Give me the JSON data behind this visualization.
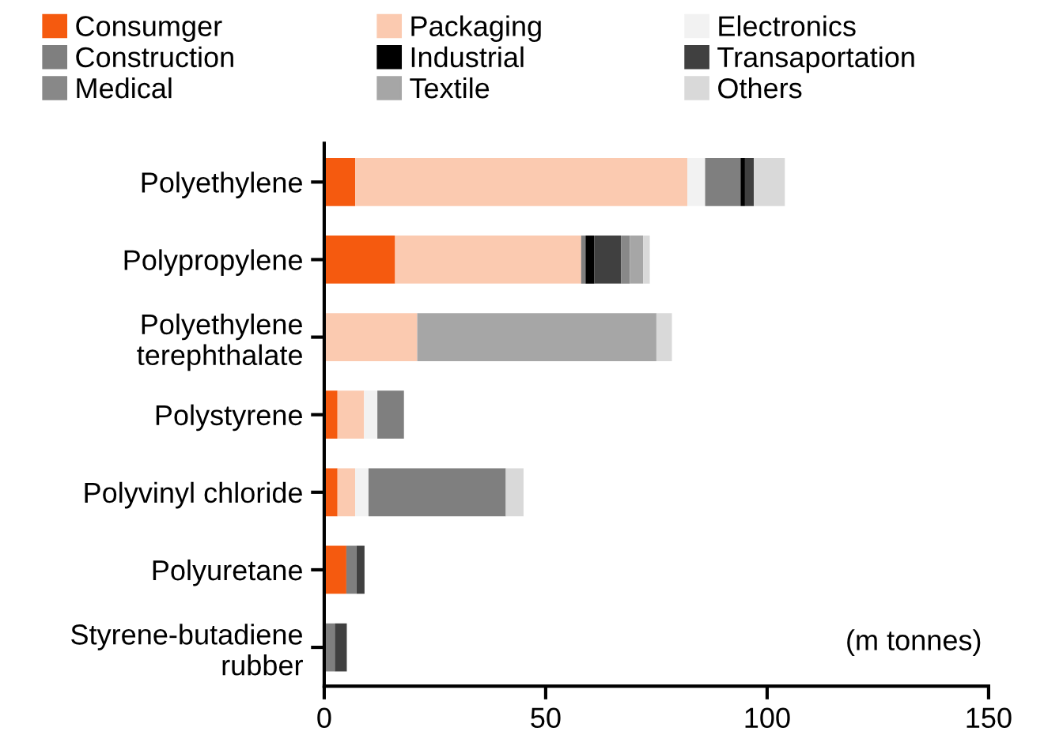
{
  "chart_data": {
    "type": "bar",
    "orientation": "horizontal",
    "stacked": true,
    "categories": [
      "Polyethylene",
      "Polypropylene",
      "Polyethylene\nterephthalate",
      "Polystyrene",
      "Polyvinyl chloride",
      "Polyuretane",
      "Styrene-butadiene\nrubber"
    ],
    "series": [
      {
        "name": "Consumger",
        "color": "#f55a0f",
        "values": [
          7,
          16,
          0,
          3,
          3,
          5,
          0
        ]
      },
      {
        "name": "Packaging",
        "color": "#fbcab0",
        "values": [
          75,
          42,
          21,
          6,
          4,
          0,
          0
        ]
      },
      {
        "name": "Electronics",
        "color": "#f2f2f2",
        "values": [
          4,
          0,
          0,
          3,
          3,
          0,
          0
        ]
      },
      {
        "name": "Construction",
        "color": "#7f7f7f",
        "values": [
          8,
          1,
          0,
          6,
          31,
          2.3,
          2.4
        ]
      },
      {
        "name": "Industrial",
        "color": "#000000",
        "values": [
          1,
          2,
          0,
          0,
          0,
          0,
          0
        ]
      },
      {
        "name": "Transaportation",
        "color": "#404040",
        "values": [
          2,
          6,
          0,
          0,
          0,
          1.8,
          2.7
        ]
      },
      {
        "name": "Medical",
        "color": "#888888",
        "values": [
          0,
          2,
          0,
          0,
          0,
          0,
          0
        ]
      },
      {
        "name": "Textile",
        "color": "#a6a6a6",
        "values": [
          0,
          3,
          54,
          0,
          0,
          0,
          0
        ]
      },
      {
        "name": "Others",
        "color": "#d9d9d9",
        "values": [
          7,
          1.5,
          3.5,
          0,
          4,
          0,
          0
        ]
      }
    ],
    "xlim": [
      0,
      150
    ],
    "xticks": [
      0,
      50,
      100,
      150
    ],
    "annotations": [
      "(m tonnes)"
    ],
    "legend": "top",
    "grid": false
  }
}
